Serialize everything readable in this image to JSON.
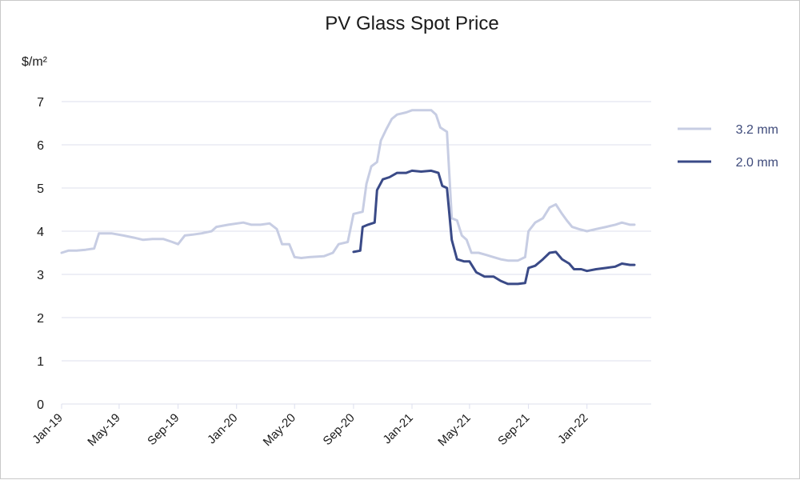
{
  "chart_data": {
    "type": "line",
    "title": "PV Glass Spot Price",
    "ylabel": "$/m²",
    "xlabel": "",
    "ylim": [
      0,
      7
    ],
    "yticks": [
      "0",
      "1",
      "2",
      "3",
      "4",
      "5",
      "6",
      "7"
    ],
    "xlim": [
      "2019-01-01",
      "2022-05-15"
    ],
    "xticks": [
      {
        "label": "Jan-19",
        "date": "2019-01-01"
      },
      {
        "label": "May-19",
        "date": "2019-05-01"
      },
      {
        "label": "Sep-19",
        "date": "2019-09-01"
      },
      {
        "label": "Jan-20",
        "date": "2020-01-01"
      },
      {
        "label": "May-20",
        "date": "2020-05-01"
      },
      {
        "label": "Sep-20",
        "date": "2020-09-01"
      },
      {
        "label": "Jan-21",
        "date": "2021-01-01"
      },
      {
        "label": "May-21",
        "date": "2021-05-01"
      },
      {
        "label": "Sep-21",
        "date": "2021-09-01"
      },
      {
        "label": "Jan-22",
        "date": "2022-01-01"
      }
    ],
    "grid": true,
    "legend_position": "right",
    "series": [
      {
        "name": "3.2 mm",
        "color": "#c7cde3",
        "points": [
          [
            "2019-01-01",
            3.5
          ],
          [
            "2019-01-15",
            3.55
          ],
          [
            "2019-02-01",
            3.55
          ],
          [
            "2019-02-20",
            3.57
          ],
          [
            "2019-03-10",
            3.6
          ],
          [
            "2019-03-20",
            3.95
          ],
          [
            "2019-04-15",
            3.95
          ],
          [
            "2019-05-10",
            3.9
          ],
          [
            "2019-06-01",
            3.85
          ],
          [
            "2019-06-20",
            3.8
          ],
          [
            "2019-07-10",
            3.82
          ],
          [
            "2019-08-01",
            3.82
          ],
          [
            "2019-08-20",
            3.75
          ],
          [
            "2019-09-01",
            3.7
          ],
          [
            "2019-09-15",
            3.9
          ],
          [
            "2019-10-01",
            3.92
          ],
          [
            "2019-10-20",
            3.95
          ],
          [
            "2019-11-10",
            4.0
          ],
          [
            "2019-11-20",
            4.1
          ],
          [
            "2019-12-15",
            4.15
          ],
          [
            "2020-01-15",
            4.2
          ],
          [
            "2020-02-01",
            4.15
          ],
          [
            "2020-02-20",
            4.15
          ],
          [
            "2020-03-10",
            4.18
          ],
          [
            "2020-03-25",
            4.05
          ],
          [
            "2020-04-05",
            3.7
          ],
          [
            "2020-04-20",
            3.7
          ],
          [
            "2020-05-01",
            3.4
          ],
          [
            "2020-05-15",
            3.38
          ],
          [
            "2020-06-01",
            3.4
          ],
          [
            "2020-07-01",
            3.42
          ],
          [
            "2020-07-20",
            3.5
          ],
          [
            "2020-08-01",
            3.7
          ],
          [
            "2020-08-20",
            3.75
          ],
          [
            "2020-09-01",
            4.4
          ],
          [
            "2020-09-20",
            4.45
          ],
          [
            "2020-09-28",
            5.1
          ],
          [
            "2020-10-08",
            5.5
          ],
          [
            "2020-10-20",
            5.6
          ],
          [
            "2020-10-28",
            6.1
          ],
          [
            "2020-11-08",
            6.35
          ],
          [
            "2020-11-20",
            6.6
          ],
          [
            "2020-12-01",
            6.7
          ],
          [
            "2020-12-20",
            6.75
          ],
          [
            "2021-01-01",
            6.8
          ],
          [
            "2021-01-20",
            6.8
          ],
          [
            "2021-02-10",
            6.8
          ],
          [
            "2021-02-20",
            6.7
          ],
          [
            "2021-03-01",
            6.4
          ],
          [
            "2021-03-15",
            6.3
          ],
          [
            "2021-03-25",
            4.3
          ],
          [
            "2021-04-05",
            4.25
          ],
          [
            "2021-04-15",
            3.9
          ],
          [
            "2021-04-25",
            3.8
          ],
          [
            "2021-05-05",
            3.5
          ],
          [
            "2021-05-20",
            3.5
          ],
          [
            "2021-06-05",
            3.45
          ],
          [
            "2021-06-20",
            3.4
          ],
          [
            "2021-07-05",
            3.35
          ],
          [
            "2021-07-20",
            3.32
          ],
          [
            "2021-08-10",
            3.32
          ],
          [
            "2021-08-25",
            3.4
          ],
          [
            "2021-09-01",
            4.0
          ],
          [
            "2021-09-15",
            4.2
          ],
          [
            "2021-10-01",
            4.3
          ],
          [
            "2021-10-15",
            4.55
          ],
          [
            "2021-10-28",
            4.62
          ],
          [
            "2021-11-10",
            4.4
          ],
          [
            "2021-11-20",
            4.25
          ],
          [
            "2021-12-01",
            4.1
          ],
          [
            "2021-12-15",
            4.05
          ],
          [
            "2022-01-01",
            4.0
          ],
          [
            "2022-01-20",
            4.05
          ],
          [
            "2022-02-10",
            4.1
          ],
          [
            "2022-03-01",
            4.15
          ],
          [
            "2022-03-15",
            4.2
          ],
          [
            "2022-04-01",
            4.15
          ],
          [
            "2022-04-10",
            4.15
          ]
        ]
      },
      {
        "name": "2.0 mm",
        "color": "#3a4a87",
        "points": [
          [
            "2020-09-01",
            3.52
          ],
          [
            "2020-09-15",
            3.55
          ],
          [
            "2020-09-20",
            4.1
          ],
          [
            "2020-10-01",
            4.15
          ],
          [
            "2020-10-15",
            4.2
          ],
          [
            "2020-10-20",
            4.95
          ],
          [
            "2020-11-01",
            5.2
          ],
          [
            "2020-11-15",
            5.25
          ],
          [
            "2020-12-01",
            5.35
          ],
          [
            "2020-12-20",
            5.35
          ],
          [
            "2021-01-01",
            5.4
          ],
          [
            "2021-01-20",
            5.38
          ],
          [
            "2021-02-10",
            5.4
          ],
          [
            "2021-02-25",
            5.35
          ],
          [
            "2021-03-05",
            5.05
          ],
          [
            "2021-03-15",
            5.0
          ],
          [
            "2021-03-25",
            3.8
          ],
          [
            "2021-04-05",
            3.35
          ],
          [
            "2021-04-20",
            3.3
          ],
          [
            "2021-05-01",
            3.3
          ],
          [
            "2021-05-15",
            3.05
          ],
          [
            "2021-06-01",
            2.95
          ],
          [
            "2021-06-20",
            2.95
          ],
          [
            "2021-07-05",
            2.85
          ],
          [
            "2021-07-20",
            2.78
          ],
          [
            "2021-08-10",
            2.78
          ],
          [
            "2021-08-25",
            2.8
          ],
          [
            "2021-09-01",
            3.15
          ],
          [
            "2021-09-15",
            3.2
          ],
          [
            "2021-10-01",
            3.35
          ],
          [
            "2021-10-15",
            3.5
          ],
          [
            "2021-10-28",
            3.52
          ],
          [
            "2021-11-10",
            3.35
          ],
          [
            "2021-11-25",
            3.25
          ],
          [
            "2021-12-05",
            3.12
          ],
          [
            "2021-12-20",
            3.12
          ],
          [
            "2022-01-01",
            3.08
          ],
          [
            "2022-01-20",
            3.12
          ],
          [
            "2022-02-10",
            3.15
          ],
          [
            "2022-03-01",
            3.18
          ],
          [
            "2022-03-15",
            3.25
          ],
          [
            "2022-04-01",
            3.22
          ],
          [
            "2022-04-10",
            3.22
          ]
        ]
      }
    ]
  }
}
